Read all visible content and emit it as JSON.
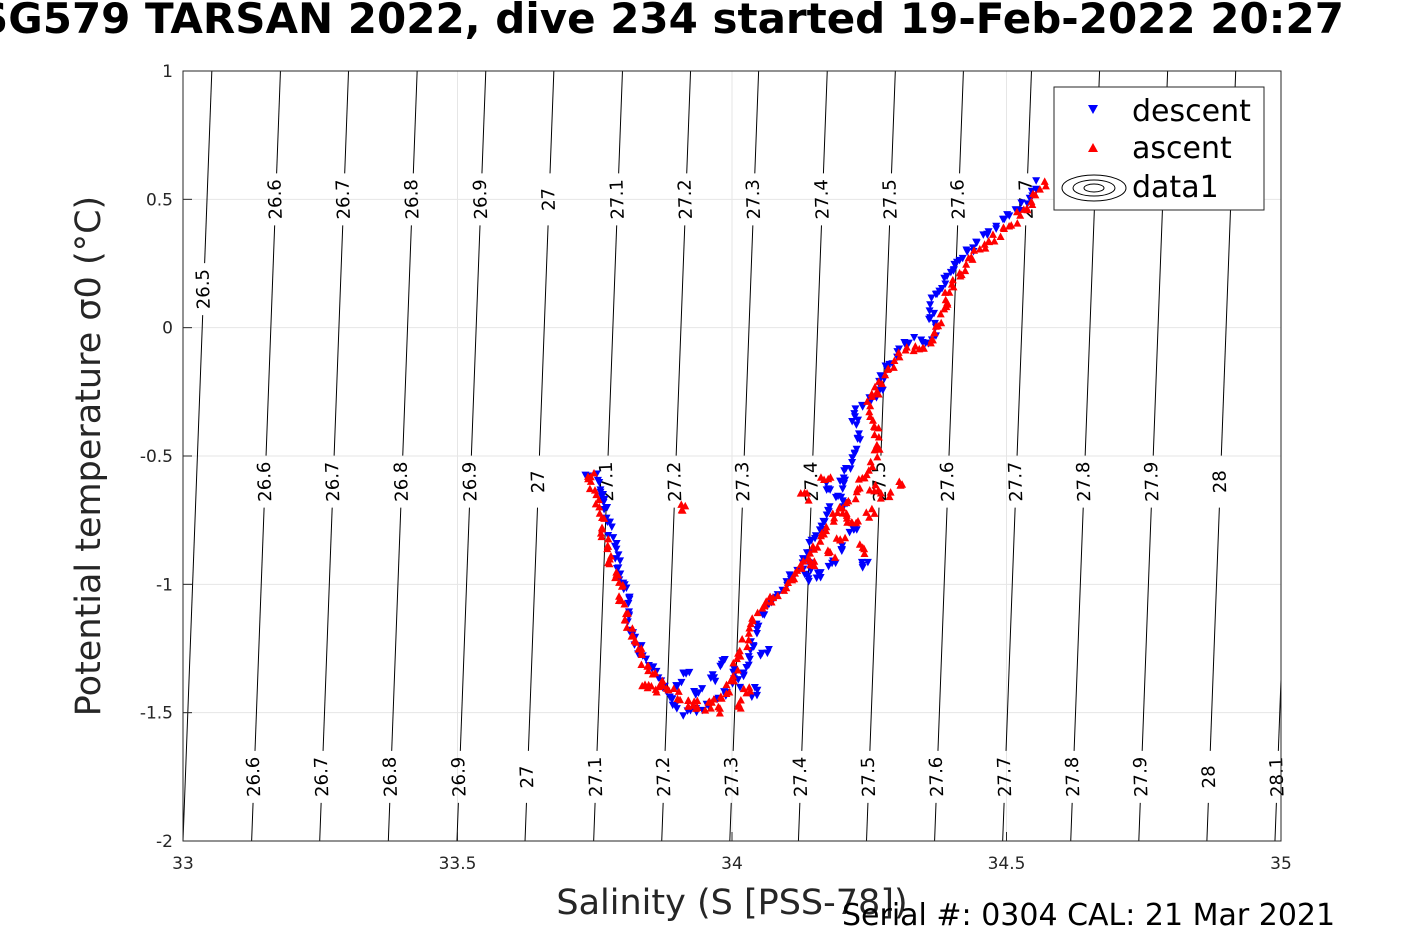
{
  "title": "SG579 TARSAN 2022, dive 234 started 19-Feb-2022 20:27",
  "footer": "Serial #: 0304  CAL: 21 Mar 2021",
  "colors": {
    "descent": "#0000ff",
    "ascent": "#ff0000",
    "grid": "#e6e6e6",
    "contour": "#000000"
  },
  "chart_data": {
    "type": "scatter",
    "xlabel": "Salinity (S [PSS-78])",
    "ylabel": "Potential temperature σ0 (°C)",
    "xlim": [
      33,
      35
    ],
    "ylim": [
      -2,
      1
    ],
    "xticks": [
      "33",
      "33.5",
      "34",
      "34.5",
      "35"
    ],
    "yticks": [
      "-2",
      "-1.5",
      "-1",
      "-0.5",
      "0",
      "0.5",
      "1"
    ],
    "grid": true,
    "legend_position": "top-right",
    "legend": [
      "descent",
      "ascent",
      "data1"
    ],
    "contour_slope": 0.0175,
    "contours": [
      {
        "sigma": "26.5",
        "s0": 33.0
      },
      {
        "sigma": "26.6",
        "s0": 33.125
      },
      {
        "sigma": "26.7",
        "s0": 33.249
      },
      {
        "sigma": "26.8",
        "s0": 33.374
      },
      {
        "sigma": "26.9",
        "s0": 33.499
      },
      {
        "sigma": "27",
        "s0": 33.623
      },
      {
        "sigma": "27.1",
        "s0": 33.748
      },
      {
        "sigma": "27.2",
        "s0": 33.872
      },
      {
        "sigma": "27.3",
        "s0": 33.996
      },
      {
        "sigma": "27.4",
        "s0": 34.121
      },
      {
        "sigma": "27.5",
        "s0": 34.245
      },
      {
        "sigma": "27.6",
        "s0": 34.369
      },
      {
        "sigma": "27.7",
        "s0": 34.493
      },
      {
        "sigma": "27.8",
        "s0": 34.617
      },
      {
        "sigma": "27.9",
        "s0": 34.741
      },
      {
        "sigma": "28",
        "s0": 34.865
      },
      {
        "sigma": "28.1",
        "s0": 34.989
      }
    ],
    "contour_label_rows": [
      {
        "t": 0.5,
        "labels": [
          "26.6",
          "26.7",
          "26.8",
          "26.9",
          "27",
          "27.1",
          "27.2",
          "27.3",
          "27.4",
          "27.5",
          "27.6",
          "27.7"
        ]
      },
      {
        "t": -0.6,
        "labels": [
          "26.6",
          "26.7",
          "26.8",
          "26.9",
          "27",
          "27.1",
          "27.2",
          "27.3",
          "27.4",
          "27.5",
          "27.6",
          "27.7",
          "27.8",
          "27.9",
          "28",
          "28.1"
        ]
      },
      {
        "t": -1.75,
        "labels": [
          "26.6",
          "26.7",
          "26.8",
          "26.9",
          "27",
          "27.1",
          "27.2",
          "27.3",
          "27.4",
          "27.5",
          "27.6",
          "27.7",
          "27.8",
          "27.9",
          "28",
          "28.1"
        ]
      },
      {
        "t": 0.15,
        "labels": [
          "26.5"
        ]
      }
    ],
    "series": [
      {
        "name": "descent",
        "marker": "triangle-down",
        "path": [
          [
            34.56,
            0.56
          ],
          [
            34.54,
            0.5
          ],
          [
            34.5,
            0.43
          ],
          [
            34.46,
            0.36
          ],
          [
            34.42,
            0.28
          ],
          [
            34.39,
            0.2
          ],
          [
            34.37,
            0.12
          ],
          [
            34.36,
            0.05
          ],
          [
            34.37,
            -0.04
          ],
          [
            34.35,
            -0.06
          ],
          [
            34.34,
            -0.04
          ],
          [
            34.32,
            -0.07
          ],
          [
            34.3,
            -0.12
          ],
          [
            34.28,
            -0.17
          ],
          [
            34.27,
            -0.23
          ],
          [
            34.26,
            -0.27
          ],
          [
            34.24,
            -0.3
          ],
          [
            34.22,
            -0.33
          ],
          [
            34.23,
            -0.45
          ],
          [
            34.21,
            -0.55
          ],
          [
            34.2,
            -0.62
          ],
          [
            34.18,
            -0.7
          ],
          [
            34.17,
            -0.76
          ],
          [
            34.15,
            -0.82
          ],
          [
            34.14,
            -0.88
          ],
          [
            34.12,
            -0.94
          ],
          [
            34.1,
            -1.0
          ],
          [
            34.08,
            -1.05
          ],
          [
            34.06,
            -1.1
          ],
          [
            34.05,
            -1.15
          ],
          [
            34.04,
            -1.2
          ],
          [
            34.03,
            -1.28
          ],
          [
            34.02,
            -1.35
          ],
          [
            34.01,
            -1.39
          ],
          [
            33.99,
            -1.42
          ],
          [
            33.97,
            -1.45
          ],
          [
            33.95,
            -1.47
          ],
          [
            33.93,
            -1.5
          ],
          [
            33.91,
            -1.5
          ],
          [
            33.89,
            -1.45
          ],
          [
            33.87,
            -1.39
          ],
          [
            33.85,
            -1.32
          ],
          [
            33.83,
            -1.25
          ],
          [
            33.82,
            -1.18
          ],
          [
            33.81,
            -1.12
          ],
          [
            33.81,
            -1.04
          ],
          [
            33.8,
            -0.97
          ],
          [
            33.79,
            -0.88
          ],
          [
            33.78,
            -0.8
          ],
          [
            33.77,
            -0.72
          ],
          [
            33.76,
            -0.65
          ],
          [
            33.75,
            -0.58
          ],
          [
            33.73,
            -0.55
          ]
        ],
        "extra": [
          [
            34.22,
            -0.8
          ],
          [
            34.2,
            -0.86
          ],
          [
            34.18,
            -0.92
          ],
          [
            34.16,
            -0.96
          ],
          [
            34.24,
            -0.92
          ],
          [
            34.21,
            -0.68
          ],
          [
            34.18,
            -0.62
          ],
          [
            34.14,
            -0.93
          ],
          [
            34.13,
            -0.97
          ],
          [
            34.06,
            -1.27
          ],
          [
            34.04,
            -1.42
          ],
          [
            34.0,
            -1.35
          ],
          [
            33.98,
            -1.3
          ],
          [
            33.96,
            -1.37
          ],
          [
            33.94,
            -1.42
          ],
          [
            33.92,
            -1.34
          ],
          [
            33.9,
            -1.4
          ]
        ]
      },
      {
        "name": "ascent",
        "marker": "triangle-up",
        "path": [
          [
            34.57,
            0.56
          ],
          [
            34.55,
            0.5
          ],
          [
            34.52,
            0.43
          ],
          [
            34.48,
            0.36
          ],
          [
            34.44,
            0.28
          ],
          [
            34.41,
            0.2
          ],
          [
            34.39,
            0.12
          ],
          [
            34.38,
            0.02
          ],
          [
            34.36,
            -0.07
          ],
          [
            34.34,
            -0.08
          ],
          [
            34.32,
            -0.09
          ],
          [
            34.3,
            -0.12
          ],
          [
            34.28,
            -0.17
          ],
          [
            34.27,
            -0.22
          ],
          [
            34.25,
            -0.28
          ],
          [
            34.27,
            -0.46
          ],
          [
            34.25,
            -0.55
          ],
          [
            34.23,
            -0.63
          ],
          [
            34.2,
            -0.7
          ],
          [
            34.18,
            -0.76
          ],
          [
            34.16,
            -0.82
          ],
          [
            34.14,
            -0.9
          ],
          [
            34.11,
            -0.98
          ],
          [
            34.08,
            -1.04
          ],
          [
            34.05,
            -1.1
          ],
          [
            34.03,
            -1.17
          ],
          [
            34.02,
            -1.25
          ],
          [
            34.01,
            -1.3
          ],
          [
            34.0,
            -1.38
          ],
          [
            33.98,
            -1.43
          ],
          [
            33.96,
            -1.47
          ],
          [
            33.94,
            -1.48
          ],
          [
            33.91,
            -1.44
          ],
          [
            33.88,
            -1.4
          ],
          [
            33.86,
            -1.36
          ],
          [
            33.84,
            -1.3
          ],
          [
            33.82,
            -1.22
          ],
          [
            33.81,
            -1.15
          ],
          [
            33.8,
            -1.07
          ],
          [
            33.8,
            -0.99
          ],
          [
            33.78,
            -0.93
          ],
          [
            33.77,
            -0.83
          ],
          [
            33.76,
            -0.74
          ],
          [
            33.75,
            -0.66
          ],
          [
            33.74,
            -0.58
          ],
          [
            33.75,
            -0.54
          ]
        ],
        "extra": [
          [
            34.26,
            -0.62
          ],
          [
            34.28,
            -0.66
          ],
          [
            34.3,
            -0.6
          ],
          [
            34.25,
            -0.72
          ],
          [
            34.22,
            -0.76
          ],
          [
            34.2,
            -0.82
          ],
          [
            34.18,
            -0.88
          ],
          [
            34.15,
            -0.92
          ],
          [
            34.24,
            -0.86
          ],
          [
            34.21,
            -0.74
          ],
          [
            34.17,
            -0.58
          ],
          [
            34.13,
            -0.66
          ],
          [
            33.91,
            -0.7
          ],
          [
            34.03,
            -1.42
          ],
          [
            34.01,
            -1.47
          ],
          [
            33.97,
            -1.49
          ],
          [
            33.93,
            -1.46
          ],
          [
            33.86,
            -1.4
          ],
          [
            33.84,
            -1.39
          ]
        ]
      }
    ]
  }
}
